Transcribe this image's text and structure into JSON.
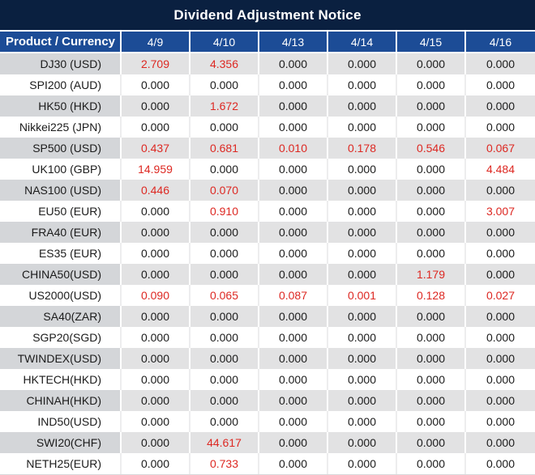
{
  "title": "Dividend Adjustment Notice",
  "table": {
    "label_header": "Product / Currency",
    "dates": [
      "4/9",
      "4/10",
      "4/13",
      "4/14",
      "4/15",
      "4/16"
    ],
    "rows": [
      {
        "product": "DJ30 (USD)",
        "values": [
          "2.709",
          "4.356",
          "0.000",
          "0.000",
          "0.000",
          "0.000"
        ]
      },
      {
        "product": "SPI200 (AUD)",
        "values": [
          "0.000",
          "0.000",
          "0.000",
          "0.000",
          "0.000",
          "0.000"
        ]
      },
      {
        "product": "HK50 (HKD)",
        "values": [
          "0.000",
          "1.672",
          "0.000",
          "0.000",
          "0.000",
          "0.000"
        ]
      },
      {
        "product": "Nikkei225 (JPN)",
        "values": [
          "0.000",
          "0.000",
          "0.000",
          "0.000",
          "0.000",
          "0.000"
        ]
      },
      {
        "product": "SP500 (USD)",
        "values": [
          "0.437",
          "0.681",
          "0.010",
          "0.178",
          "0.546",
          "0.067"
        ]
      },
      {
        "product": "UK100 (GBP)",
        "values": [
          "14.959",
          "0.000",
          "0.000",
          "0.000",
          "0.000",
          "4.484"
        ]
      },
      {
        "product": "NAS100 (USD)",
        "values": [
          "0.446",
          "0.070",
          "0.000",
          "0.000",
          "0.000",
          "0.000"
        ]
      },
      {
        "product": "EU50 (EUR)",
        "values": [
          "0.000",
          "0.910",
          "0.000",
          "0.000",
          "0.000",
          "3.007"
        ]
      },
      {
        "product": "FRA40 (EUR)",
        "values": [
          "0.000",
          "0.000",
          "0.000",
          "0.000",
          "0.000",
          "0.000"
        ]
      },
      {
        "product": "ES35 (EUR)",
        "values": [
          "0.000",
          "0.000",
          "0.000",
          "0.000",
          "0.000",
          "0.000"
        ]
      },
      {
        "product": "CHINA50(USD)",
        "values": [
          "0.000",
          "0.000",
          "0.000",
          "0.000",
          "1.179",
          "0.000"
        ]
      },
      {
        "product": "US2000(USD)",
        "values": [
          "0.090",
          "0.065",
          "0.087",
          "0.001",
          "0.128",
          "0.027"
        ]
      },
      {
        "product": "SA40(ZAR)",
        "values": [
          "0.000",
          "0.000",
          "0.000",
          "0.000",
          "0.000",
          "0.000"
        ]
      },
      {
        "product": "SGP20(SGD)",
        "values": [
          "0.000",
          "0.000",
          "0.000",
          "0.000",
          "0.000",
          "0.000"
        ]
      },
      {
        "product": "TWINDEX(USD)",
        "values": [
          "0.000",
          "0.000",
          "0.000",
          "0.000",
          "0.000",
          "0.000"
        ]
      },
      {
        "product": "HKTECH(HKD)",
        "values": [
          "0.000",
          "0.000",
          "0.000",
          "0.000",
          "0.000",
          "0.000"
        ]
      },
      {
        "product": "CHINAH(HKD)",
        "values": [
          "0.000",
          "0.000",
          "0.000",
          "0.000",
          "0.000",
          "0.000"
        ]
      },
      {
        "product": "IND50(USD)",
        "values": [
          "0.000",
          "0.000",
          "0.000",
          "0.000",
          "0.000",
          "0.000"
        ]
      },
      {
        "product": "SWI20(CHF)",
        "values": [
          "0.000",
          "44.617",
          "0.000",
          "0.000",
          "0.000",
          "0.000"
        ]
      },
      {
        "product": "NETH25(EUR)",
        "values": [
          "0.000",
          "0.733",
          "0.000",
          "0.000",
          "0.000",
          "0.000"
        ]
      }
    ]
  },
  "colors": {
    "title_bg": "#0a2040",
    "header_bg": "#1c4c96",
    "stripe_label_bg": "#d4d6d9",
    "stripe_value_bg": "#e2e2e3",
    "plain_row_bg": "#ffffff",
    "text_dark": "#1b1b1b",
    "highlight_red": "#dd2822",
    "header_text": "#ffffff"
  }
}
